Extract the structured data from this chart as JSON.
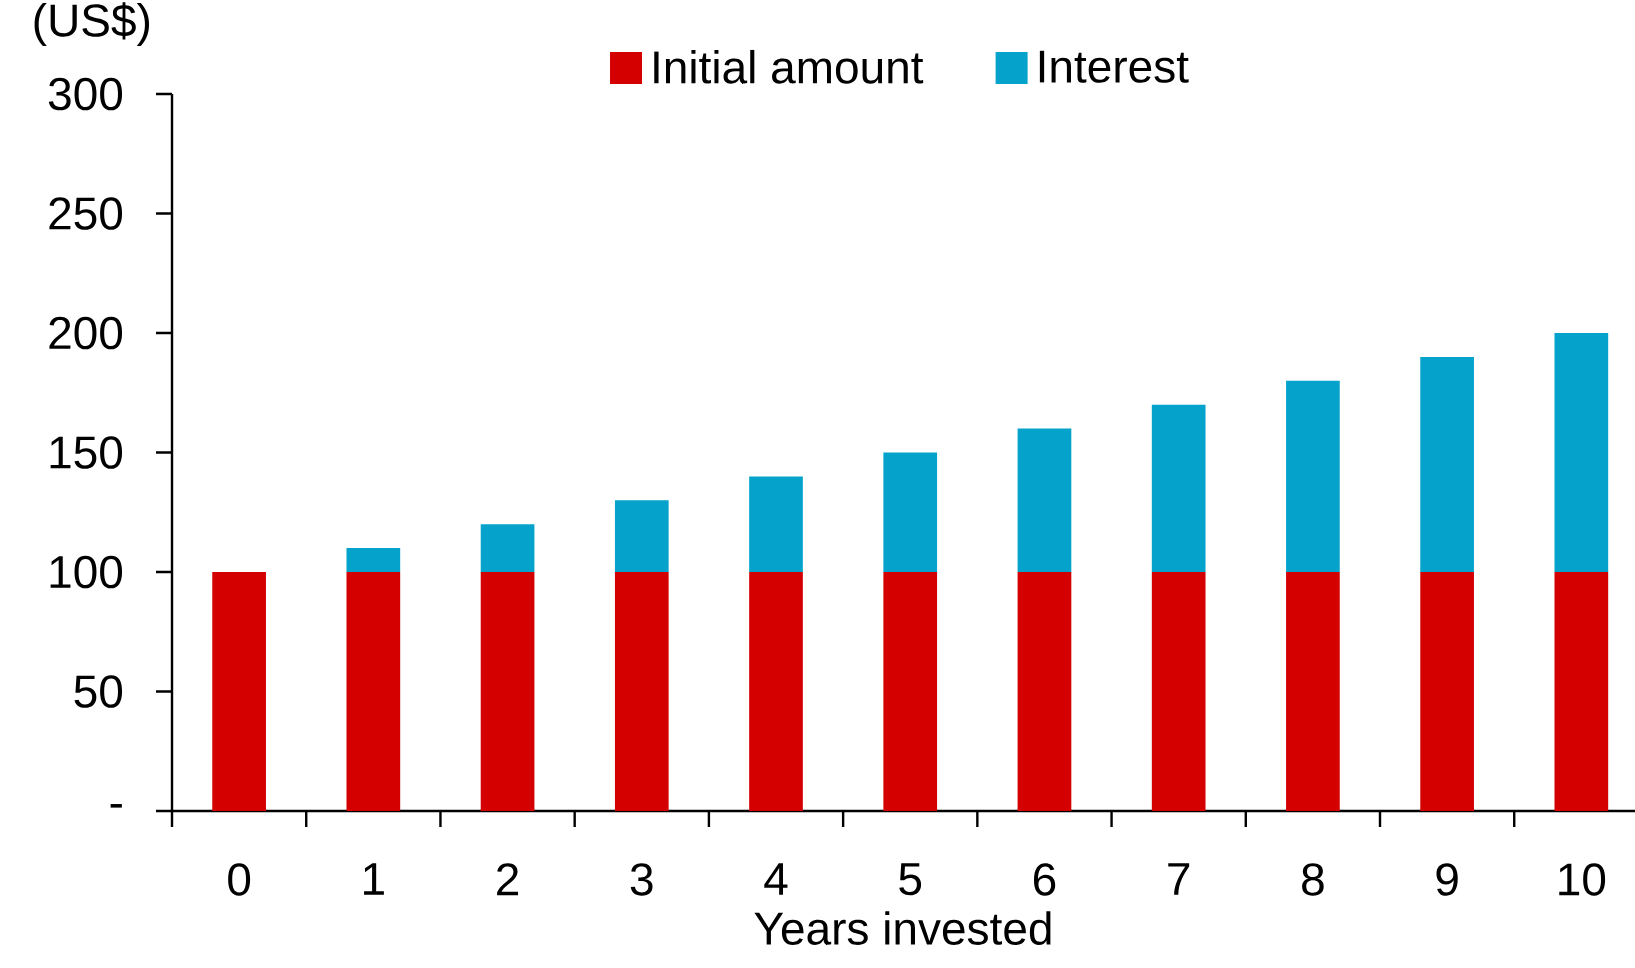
{
  "chart_data": {
    "type": "bar",
    "stacked": true,
    "ylabel": "(US$)",
    "xlabel": "Years invested",
    "categories": [
      "0",
      "1",
      "2",
      "3",
      "4",
      "5",
      "6",
      "7",
      "8",
      "9",
      "10"
    ],
    "series": [
      {
        "name": "Initial amount",
        "color": "#d40000",
        "values": [
          100,
          100,
          100,
          100,
          100,
          100,
          100,
          100,
          100,
          100,
          100
        ]
      },
      {
        "name": "Interest",
        "color": "#05a3cb",
        "values": [
          0,
          10,
          20,
          30,
          40,
          50,
          60,
          70,
          80,
          90,
          100
        ]
      }
    ],
    "ylim": [
      0,
      300
    ],
    "yticks": [
      {
        "value": 0,
        "label": "-"
      },
      50,
      100,
      150,
      200,
      250,
      300
    ],
    "legend": "top"
  }
}
